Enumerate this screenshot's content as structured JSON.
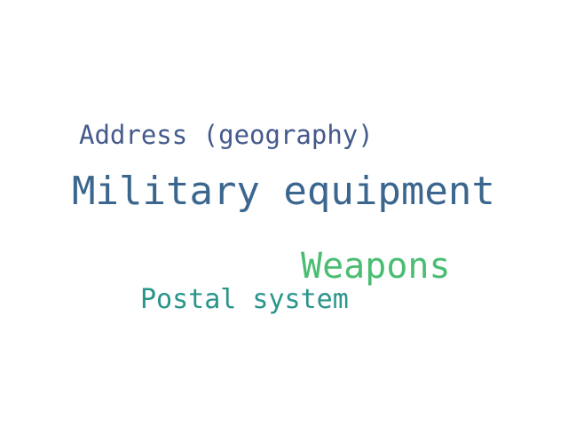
{
  "word_cloud": {
    "words": [
      {
        "text": "Address (geography)",
        "color": "#445a8c"
      },
      {
        "text": "Military equipment",
        "color": "#3b668e"
      },
      {
        "text": "Weapons",
        "color": "#4bbd72"
      },
      {
        "text": "Postal system",
        "color": "#2a958b"
      }
    ]
  }
}
